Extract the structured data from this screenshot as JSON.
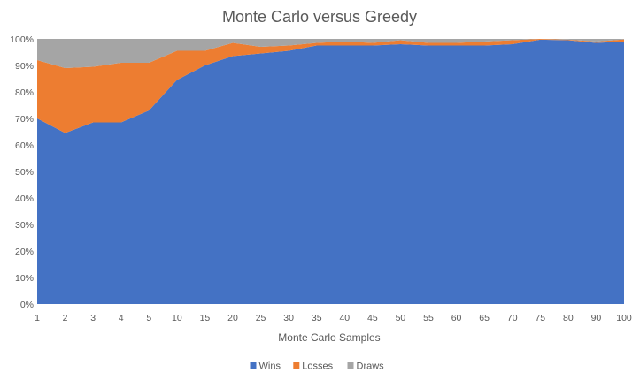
{
  "chart_data": {
    "type": "area",
    "stacked": "percent",
    "title": "Monte Carlo versus Greedy",
    "xlabel": "Monte  Carlo Samples",
    "ylabel": "",
    "categories": [
      "1",
      "2",
      "3",
      "4",
      "5",
      "10",
      "15",
      "20",
      "25",
      "30",
      "35",
      "40",
      "45",
      "50",
      "55",
      "60",
      "65",
      "70",
      "75",
      "80",
      "90",
      "100"
    ],
    "y_ticks": [
      "0%",
      "10%",
      "20%",
      "30%",
      "40%",
      "50%",
      "60%",
      "70%",
      "80%",
      "90%",
      "100%"
    ],
    "ylim": [
      0,
      100
    ],
    "grid": false,
    "legend_position": "bottom",
    "series": [
      {
        "name": "Wins",
        "color": "#4472C4",
        "values": [
          70,
          64.5,
          68.5,
          68.5,
          73,
          84.5,
          90,
          93.5,
          94.5,
          95.5,
          97.5,
          97.5,
          97.5,
          98,
          97.5,
          97.5,
          97.5,
          98,
          99.7,
          99.5,
          98.5,
          99
        ]
      },
      {
        "name": "Losses",
        "color": "#ED7D31",
        "values": [
          22,
          24.5,
          21,
          22.5,
          18,
          11,
          5.5,
          5,
          2.5,
          2,
          1,
          1.5,
          1,
          1.5,
          1,
          1,
          1.5,
          1.5,
          0.3,
          0.2,
          0.5,
          0.8
        ]
      },
      {
        "name": "Draws",
        "color": "#A5A5A5",
        "values": [
          8,
          11,
          10.5,
          9,
          9,
          4.5,
          4.5,
          1.5,
          3,
          2.5,
          1.5,
          1,
          1.5,
          0.5,
          1.5,
          1.5,
          1,
          0.5,
          0,
          0.3,
          1,
          0.2
        ]
      }
    ]
  }
}
